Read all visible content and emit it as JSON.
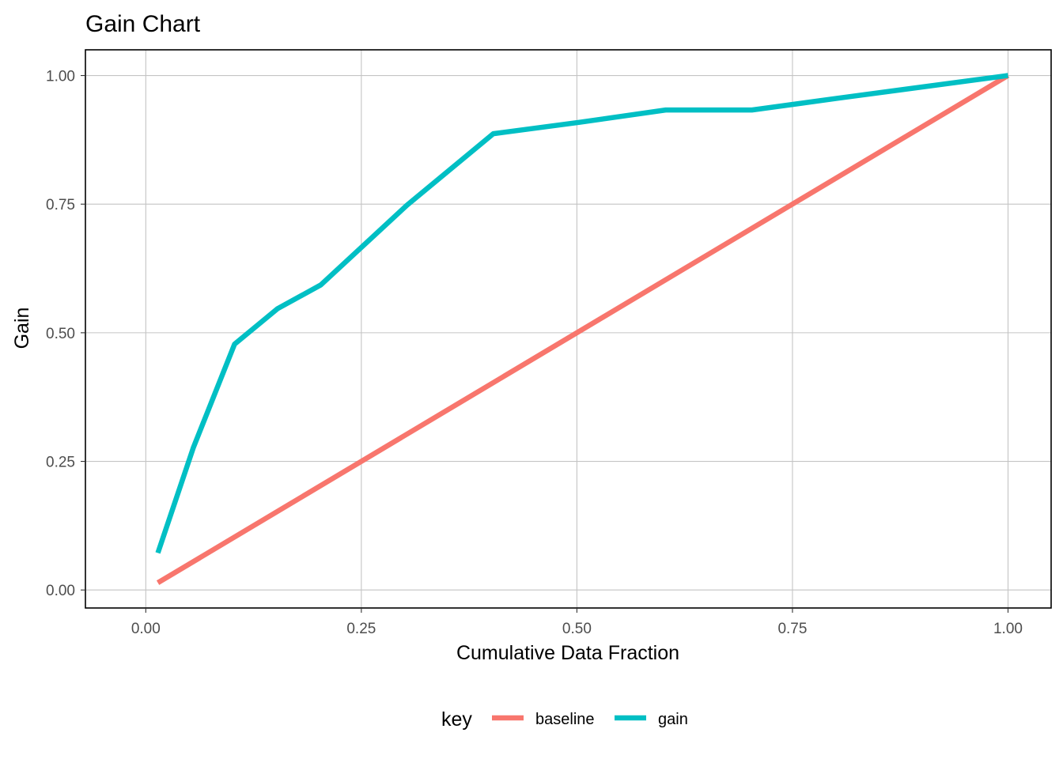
{
  "chart_data": {
    "type": "line",
    "title": "Gain Chart",
    "xlabel": "Cumulative Data Fraction",
    "ylabel": "Gain",
    "xlim": [
      -0.07,
      1.05
    ],
    "ylim": [
      -0.035,
      1.05
    ],
    "x_ticks": [
      0.0,
      0.25,
      0.5,
      0.75,
      1.0
    ],
    "x_tick_labels": [
      "0.00",
      "0.25",
      "0.50",
      "0.75",
      "1.00"
    ],
    "y_ticks": [
      0.0,
      0.25,
      0.5,
      0.75,
      1.0
    ],
    "y_tick_labels": [
      "0.00",
      "0.25",
      "0.50",
      "0.75",
      "1.00"
    ],
    "grid": true,
    "legend": {
      "title": "key",
      "position": "bottom"
    },
    "series": [
      {
        "name": "baseline",
        "color": "#F8766D",
        "x": [
          0.014,
          1.0
        ],
        "y": [
          0.014,
          1.0
        ]
      },
      {
        "name": "gain",
        "color": "#00BFC4",
        "x": [
          0.014,
          0.055,
          0.103,
          0.153,
          0.203,
          0.303,
          0.403,
          0.503,
          0.603,
          0.703,
          0.803,
          1.0
        ],
        "y": [
          0.072,
          0.276,
          0.478,
          0.547,
          0.593,
          0.748,
          0.887,
          0.909,
          0.933,
          0.933,
          0.956,
          1.0
        ]
      }
    ]
  }
}
